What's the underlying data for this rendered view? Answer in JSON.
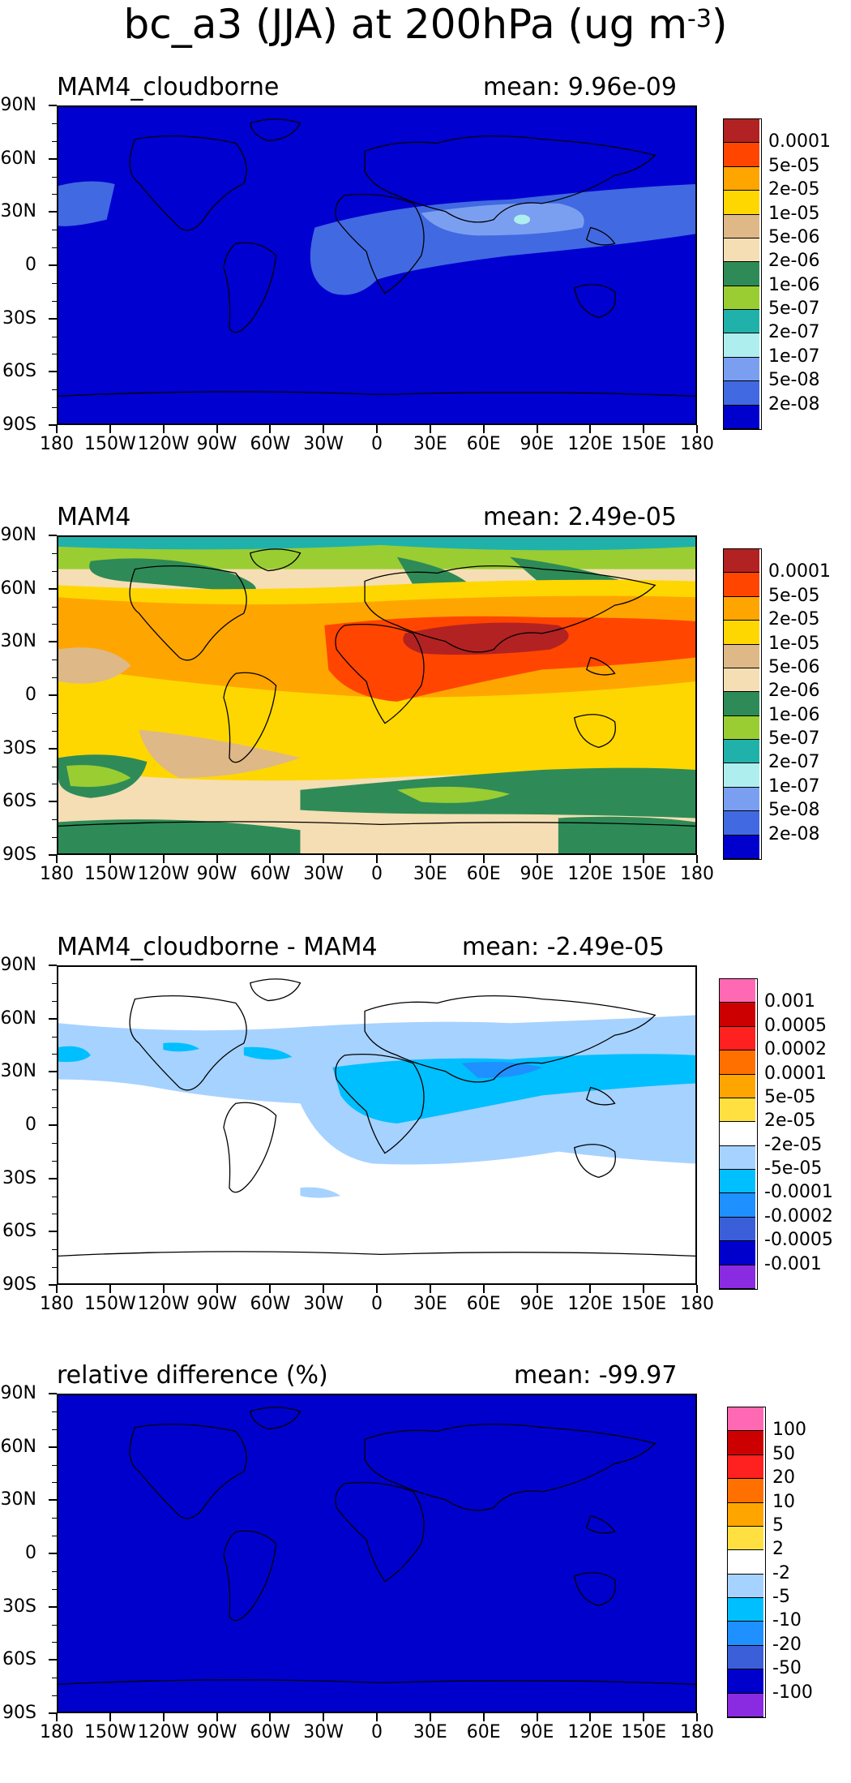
{
  "figure": {
    "title_main": "bc_a3 (JJA) at 200hPa (ug m",
    "title_sup": "-3",
    "title_end": ")"
  },
  "axes": {
    "lat_labels": [
      "90N",
      "60N",
      "30N",
      "0",
      "30S",
      "60S",
      "90S"
    ],
    "lon_labels": [
      "180",
      "150W",
      "120W",
      "90W",
      "60W",
      "30W",
      "0",
      "30E",
      "60E",
      "90E",
      "120E",
      "150E",
      "180"
    ]
  },
  "panels": [
    {
      "title": "MAM4_cloudborne",
      "mean": "mean: 9.96e-09",
      "background": "#0000d0",
      "palette": [
        "#b22222",
        "#ff4500",
        "#ffa500",
        "#ffd700",
        "#deb887",
        "#f5deb3",
        "#2e8b57",
        "#9acd32",
        "#20b2aa",
        "#afeeee",
        "#7b9ff0",
        "#4169e1",
        "#0000cd"
      ],
      "levels": [
        "0.0001",
        "5e-05",
        "2e-05",
        "1e-05",
        "5e-06",
        "2e-06",
        "1e-06",
        "5e-07",
        "2e-07",
        "1e-07",
        "5e-08",
        "2e-08"
      ]
    },
    {
      "title": "MAM4",
      "mean": "mean: 2.49e-05",
      "background": "#ffd700",
      "palette": [
        "#b22222",
        "#ff4500",
        "#ffa500",
        "#ffd700",
        "#deb887",
        "#f5deb3",
        "#2e8b57",
        "#9acd32",
        "#20b2aa",
        "#afeeee",
        "#7b9ff0",
        "#4169e1",
        "#0000cd"
      ],
      "levels": [
        "0.0001",
        "5e-05",
        "2e-05",
        "1e-05",
        "5e-06",
        "2e-06",
        "1e-06",
        "5e-07",
        "2e-07",
        "1e-07",
        "5e-08",
        "2e-08"
      ]
    },
    {
      "title": "MAM4_cloudborne - MAM4",
      "mean": "mean: -2.49e-05",
      "background": "#ffffff",
      "palette": [
        "#ff69b4",
        "#cc0000",
        "#ff2020",
        "#ff7000",
        "#ffa500",
        "#ffe040",
        "#ffffff",
        "#a6d2ff",
        "#00bfff",
        "#1e90ff",
        "#3b5fd9",
        "#0000cd",
        "#8a2be2"
      ],
      "levels": [
        "0.001",
        "0.0005",
        "0.0002",
        "0.0001",
        "5e-05",
        "2e-05",
        "-2e-05",
        "-5e-05",
        "-0.0001",
        "-0.0002",
        "-0.0005",
        "-0.001"
      ]
    },
    {
      "title": "relative difference (%)",
      "mean": "mean: -99.97",
      "background": "#0000d0",
      "palette": [
        "#ff69b4",
        "#cc0000",
        "#ff2020",
        "#ff7000",
        "#ffa500",
        "#ffe040",
        "#ffffff",
        "#a6d2ff",
        "#00bfff",
        "#1e90ff",
        "#3b5fd9",
        "#0000cd",
        "#8a2be2"
      ],
      "levels": [
        "100",
        "50",
        "20",
        "10",
        "5",
        "2",
        "-2",
        "-5",
        "-10",
        "-20",
        "-50",
        "-100"
      ]
    }
  ]
}
